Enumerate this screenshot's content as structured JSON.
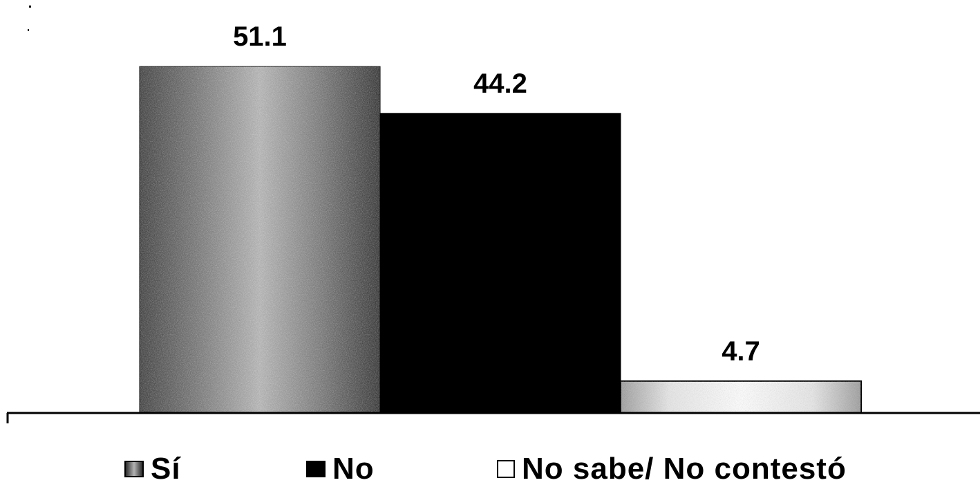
{
  "chart_data": {
    "type": "bar",
    "categories": [
      "Sí",
      "No",
      "No sabe/ No contestó"
    ],
    "values": [
      51.1,
      44.2,
      4.7
    ],
    "ylim": [
      0,
      60
    ],
    "grid": false,
    "legend_placement": "bottom",
    "series_colors": [
      "#8a8a8a",
      "#000000",
      "#f2f2f2"
    ],
    "value_labels": [
      "51.1",
      "44.2",
      "4.7"
    ]
  },
  "legend": {
    "items": [
      {
        "label": "Sí",
        "color": "#8a8a8a"
      },
      {
        "label": "No",
        "color": "#000000"
      },
      {
        "label": "No sabe/ No contestó",
        "color": "#f2f2f2"
      }
    ]
  }
}
